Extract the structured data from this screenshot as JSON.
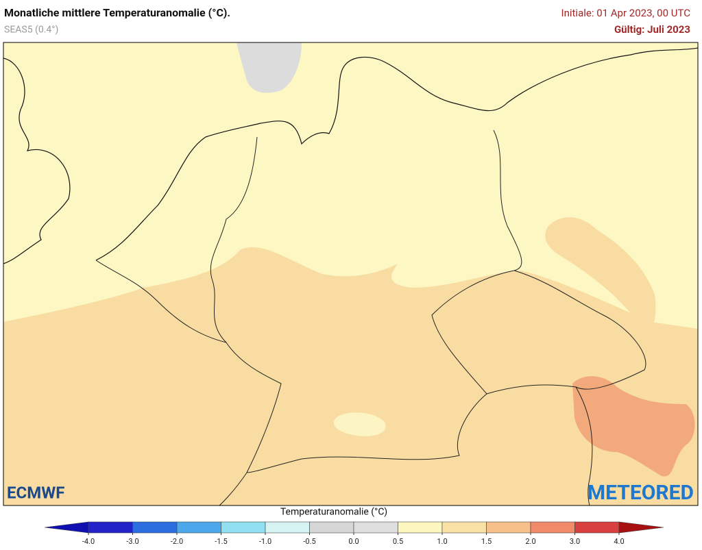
{
  "header": {
    "title": "Monatliche mittlere Temperaturanomalie (°C).",
    "subtitle": "SEAS5 (0.4°)",
    "initial": "Initiale: 01 Apr 2023, 00 UTC",
    "valid": "Gültig: Juli 2023"
  },
  "logos": {
    "left": "ECMWF",
    "right": "METEORED"
  },
  "colorbar": {
    "label": "Temperaturanomalie (°C)",
    "ticks": [
      {
        "value": -4,
        "label": "-4.0"
      },
      {
        "value": -3,
        "label": "-3.0"
      },
      {
        "value": -2,
        "label": "-2.0"
      },
      {
        "value": -1.5,
        "label": "-1.5"
      },
      {
        "value": -1,
        "label": "-1.0"
      },
      {
        "value": -0.5,
        "label": "-0.5"
      },
      {
        "value": 0,
        "label": "0.0"
      },
      {
        "value": 0.5,
        "label": "0.5"
      },
      {
        "value": 1,
        "label": "1.0"
      },
      {
        "value": 1.5,
        "label": "1.5"
      },
      {
        "value": 2,
        "label": "2.0"
      },
      {
        "value": 3,
        "label": "3.0"
      },
      {
        "value": 4,
        "label": "4.0"
      }
    ],
    "colors": [
      "#2222c8",
      "#2c6ee0",
      "#4ca8ea",
      "#90e0f2",
      "#d6f3f4",
      "#d6d6d6",
      "#dedede",
      "#fdf6be",
      "#fae2a6",
      "#f5c08a",
      "#f08a68",
      "#d84040"
    ],
    "under_color": "#1010b0",
    "over_color": "#a81010"
  }
}
